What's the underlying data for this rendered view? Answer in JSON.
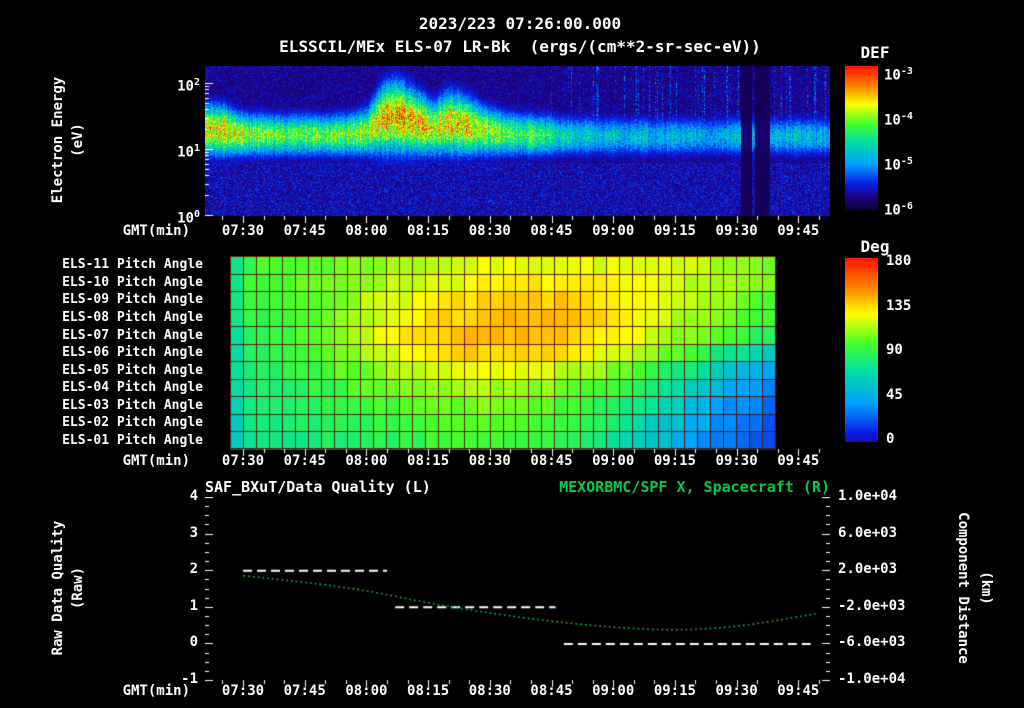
{
  "header": {
    "datetime": "2023/223 07:26:00.000",
    "instrument_title": "ELSSCIL/MEx ELS-07 LR-Bk  (ergs/(cm**2-sr-sec-eV))"
  },
  "time_axis": {
    "label": "GMT(min)",
    "ticks": [
      "07:30",
      "07:45",
      "08:00",
      "08:15",
      "08:30",
      "08:45",
      "09:00",
      "09:15",
      "09:30",
      "09:45"
    ]
  },
  "spectrogram_panel": {
    "ylabel_line1": "Electron Energy",
    "ylabel_line2": "(eV)",
    "yticks": [
      {
        "b": "10",
        "e": "2"
      },
      {
        "b": "10",
        "e": "1"
      },
      {
        "b": "10",
        "e": "0"
      }
    ],
    "colorbar": {
      "title": "DEF",
      "ticks": [
        {
          "b": "10",
          "e": "-3"
        },
        {
          "b": "10",
          "e": "-4"
        },
        {
          "b": "10",
          "e": "-5"
        },
        {
          "b": "10",
          "e": "-6"
        }
      ]
    }
  },
  "pitch_panel": {
    "rows": [
      "ELS-11 Pitch Angle",
      "ELS-10 Pitch Angle",
      "ELS-09 Pitch Angle",
      "ELS-08 Pitch Angle",
      "ELS-07 Pitch Angle",
      "ELS-06 Pitch Angle",
      "ELS-05 Pitch Angle",
      "ELS-04 Pitch Angle",
      "ELS-03 Pitch Angle",
      "ELS-02 Pitch Angle",
      "ELS-01 Pitch Angle"
    ],
    "colorbar": {
      "title": "Deg",
      "ticks": [
        "180",
        "135",
        "90",
        "45",
        "0"
      ]
    }
  },
  "line_panel": {
    "title_left": "SAF_BXuT/Data Quality (L)",
    "title_right": "MEXORBMC/SPF X, Spacecraft (R)",
    "title_right_color": "#00cc44",
    "ylabel_left_line1": "Raw Data Quality",
    "ylabel_left_line2": "(Raw)",
    "ylabel_right_line1": "Component Distance",
    "ylabel_right_line2": "(km)",
    "yticks_left": [
      "4",
      "3",
      "2",
      "1",
      "0",
      "-1"
    ],
    "yticks_right": [
      "1.0e+04",
      "6.0e+03",
      "2.0e+03",
      "-2.0e+03",
      "-6.0e+03",
      "-1.0e+04"
    ]
  },
  "chart_data": [
    {
      "type": "heatmap",
      "name": "electron-energy-spectrogram",
      "title": "ELSSCIL/MEx ELS-07 LR-Bk",
      "units": "ergs/(cm**2-sr-sec-eV)",
      "ylabel": "Electron Energy (eV)",
      "y_scale": "log",
      "y_range_ev": [
        1,
        180
      ],
      "colorbar_title": "DEF",
      "colorbar_range": [
        "1e-6",
        "1e-3"
      ],
      "x_ticks": [
        "07:30",
        "07:45",
        "08:00",
        "08:15",
        "08:30",
        "08:45",
        "09:00",
        "09:15",
        "09:30",
        "09:45"
      ],
      "model": {
        "time_bins": 48,
        "band_bottom_log_ev": 0.85,
        "band_top_log_ev": [
          1.75,
          1.72,
          1.62,
          1.6,
          1.6,
          1.58,
          1.58,
          1.6,
          1.58,
          1.58,
          1.6,
          1.62,
          1.7,
          2.05,
          2.15,
          2.05,
          1.92,
          1.78,
          1.95,
          1.92,
          1.82,
          1.72,
          1.66,
          1.62,
          1.6,
          1.58,
          1.58,
          1.56,
          1.55,
          1.56,
          1.54,
          1.55,
          1.54,
          1.55,
          1.53,
          1.54,
          1.54,
          1.55,
          1.53,
          1.54,
          1.55,
          1.55,
          1.54,
          1.54,
          1.54,
          1.55,
          1.54,
          1.53
        ],
        "band_intensity": [
          0.82,
          0.88,
          0.78,
          0.72,
          0.7,
          0.66,
          0.65,
          0.68,
          0.66,
          0.65,
          0.68,
          0.72,
          0.75,
          0.85,
          0.95,
          0.92,
          0.88,
          0.8,
          0.85,
          0.88,
          0.82,
          0.75,
          0.7,
          0.68,
          0.65,
          0.6,
          0.55,
          0.5,
          0.45,
          0.48,
          0.42,
          0.45,
          0.4,
          0.44,
          0.38,
          0.42,
          0.4,
          0.42,
          0.38,
          0.4,
          0.45,
          0.45,
          0.4,
          0.42,
          0.42,
          0.45,
          0.42,
          0.4
        ],
        "dark_columns_frac": [
          [
            0.857,
            0.8745
          ],
          [
            0.879,
            0.903
          ]
        ]
      }
    },
    {
      "type": "heatmap",
      "name": "pitch-angle-panels",
      "unit": "Deg",
      "range_deg": [
        0,
        180
      ],
      "rows_top_to_bottom": [
        "ELS-11",
        "ELS-10",
        "ELS-09",
        "ELS-08",
        "ELS-07",
        "ELS-06",
        "ELS-05",
        "ELS-04",
        "ELS-03",
        "ELS-02",
        "ELS-01"
      ],
      "model": {
        "time_cols": 42,
        "grid_deg": [
          [
            90,
            95,
            100,
            105,
            110,
            115,
            120,
            122,
            122,
            120,
            118,
            115,
            110,
            105
          ],
          [
            90,
            95,
            100,
            108,
            115,
            120,
            125,
            128,
            128,
            125,
            120,
            115,
            110,
            100
          ],
          [
            88,
            92,
            100,
            110,
            120,
            128,
            132,
            135,
            135,
            130,
            122,
            112,
            105,
            95
          ],
          [
            85,
            90,
            100,
            112,
            125,
            132,
            138,
            140,
            138,
            132,
            122,
            110,
            100,
            90
          ],
          [
            85,
            88,
            98,
            112,
            126,
            134,
            140,
            140,
            136,
            128,
            118,
            105,
            92,
            80
          ],
          [
            82,
            86,
            95,
            108,
            122,
            130,
            135,
            135,
            130,
            120,
            108,
            92,
            75,
            60
          ],
          [
            80,
            84,
            92,
            102,
            112,
            120,
            124,
            122,
            116,
            106,
            92,
            75,
            55,
            40
          ],
          [
            78,
            82,
            88,
            96,
            104,
            110,
            112,
            110,
            104,
            94,
            78,
            60,
            42,
            30
          ],
          [
            76,
            80,
            85,
            92,
            98,
            102,
            104,
            102,
            96,
            86,
            70,
            52,
            35,
            25
          ],
          [
            75,
            78,
            82,
            88,
            92,
            96,
            98,
            96,
            90,
            80,
            62,
            45,
            30,
            20
          ],
          [
            74,
            76,
            80,
            85,
            88,
            92,
            94,
            92,
            86,
            76,
            58,
            40,
            25,
            15
          ]
        ]
      }
    },
    {
      "type": "line",
      "name": "data-quality-and-spacecraft-x",
      "ylim_left": [
        -1,
        4
      ],
      "ylim_right": [
        -10000,
        10000
      ],
      "x_ticks": [
        "07:30",
        "07:45",
        "08:00",
        "08:15",
        "08:30",
        "08:45",
        "09:00",
        "09:15",
        "09:30",
        "09:45"
      ],
      "series": [
        {
          "name": "SAF_BXuT/Data Quality (L)",
          "axis": "left",
          "color": "#ffffff",
          "style": "dashed",
          "segments_min_from_0730": [
            {
              "t0": 0,
              "t1": 35,
              "value": 2
            },
            {
              "t0": 37,
              "t1": 76,
              "value": 1
            },
            {
              "t0": 78,
              "t1": 138,
              "value": 0
            }
          ]
        },
        {
          "name": "MEXORBMC/SPF X, Spacecraft (R)",
          "axis": "right",
          "color": "#00cc44",
          "style": "dotted",
          "t_min_from_0730": [
            0,
            15,
            30,
            45,
            60,
            75,
            90,
            105,
            120,
            135,
            140
          ],
          "values_km": [
            1400,
            700,
            -200,
            -1600,
            -2700,
            -3600,
            -4250,
            -4600,
            -4200,
            -3100,
            -2700
          ]
        }
      ]
    }
  ]
}
